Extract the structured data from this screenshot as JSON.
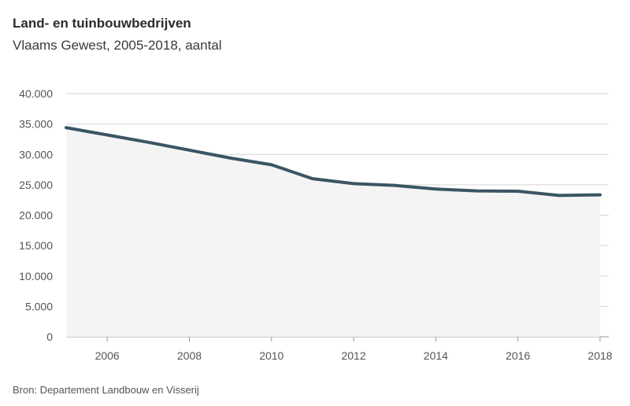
{
  "header": {
    "title": "Land- en tuinbouwbedrijven",
    "subtitle": "Vlaams Gewest, 2005-2018, aantal"
  },
  "footer": {
    "source": "Bron: Departement Landbouw en Visserij"
  },
  "chart_data": {
    "type": "area",
    "title": "Land- en tuinbouwbedrijven",
    "subtitle": "Vlaams Gewest, 2005-2018, aantal",
    "xlabel": "",
    "ylabel": "",
    "x": [
      2005,
      2006,
      2007,
      2008,
      2009,
      2010,
      2011,
      2012,
      2013,
      2014,
      2015,
      2016,
      2017,
      2018
    ],
    "series": [
      {
        "values": [
          34400,
          33200,
          32000,
          30700,
          29400,
          28300,
          26000,
          25200,
          24900,
          24300,
          24000,
          23950,
          23250,
          23350
        ],
        "color": "#3b5563"
      }
    ],
    "xlim": [
      2005,
      2018
    ],
    "ylim": [
      0,
      40000
    ],
    "x_ticks": [
      "2006",
      "2008",
      "2010",
      "2012",
      "2014",
      "2016",
      "2018"
    ],
    "y_ticks": [
      "0",
      "5.000",
      "10.000",
      "15.000",
      "20.000",
      "25.000",
      "30.000",
      "35.000",
      "40.000"
    ],
    "grid": true,
    "area_fill": "#f4f4f4"
  }
}
